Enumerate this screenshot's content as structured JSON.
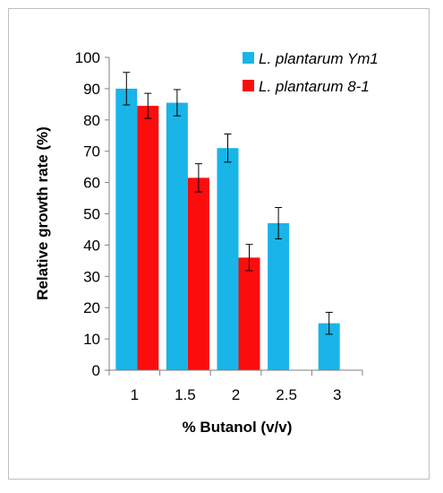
{
  "chart_data": {
    "type": "bar",
    "title": "",
    "xlabel": "% Butanol (v/v)",
    "ylabel": "Relative growth rate (%)",
    "categories": [
      "1",
      "1.5",
      "2",
      "2.5",
      "3"
    ],
    "ylim": [
      0,
      100
    ],
    "yticks": [
      "0",
      "10",
      "20",
      "30",
      "40",
      "50",
      "60",
      "70",
      "80",
      "90",
      "100"
    ],
    "grid": false,
    "legend_position": "top-right",
    "series": [
      {
        "name": "L. plantarum Ym1",
        "color": "#19b4e8",
        "values": [
          90,
          85.5,
          71,
          47,
          15
        ],
        "errors": [
          5.2,
          4.2,
          4.5,
          5,
          3.5
        ]
      },
      {
        "name": "L. plantarum 8-1",
        "color": "#fa0d0d",
        "values": [
          84.5,
          61.5,
          36,
          null,
          null
        ],
        "errors": [
          4,
          4.5,
          4.2,
          null,
          null
        ]
      }
    ]
  }
}
